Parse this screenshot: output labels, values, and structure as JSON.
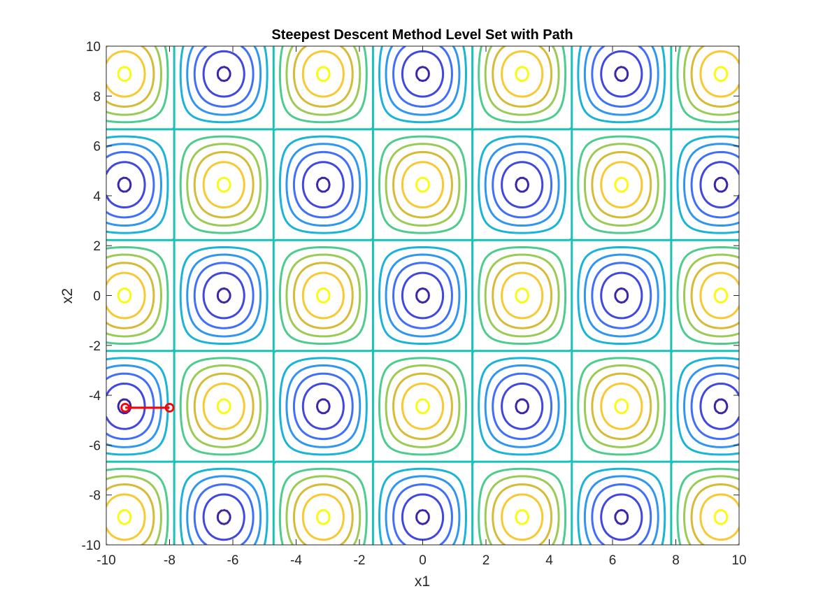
{
  "chart_data": {
    "type": "contour",
    "title": "Steepest Descent Method Level Set with Path",
    "xlabel": "x1",
    "ylabel": "x2",
    "xlim": [
      -10,
      10
    ],
    "ylim": [
      -10,
      10
    ],
    "x_ticks": [
      -10,
      -8,
      -6,
      -4,
      -2,
      0,
      2,
      4,
      6,
      8,
      10
    ],
    "y_ticks": [
      -10,
      -8,
      -6,
      -4,
      -2,
      0,
      2,
      4,
      6,
      8,
      10
    ],
    "x_tick_labels": [
      "-10",
      "-8",
      "-6",
      "-4",
      "-2",
      "0",
      "2",
      "4",
      "6",
      "8",
      "10"
    ],
    "y_tick_labels": [
      "-10",
      "-8",
      "-6",
      "-4",
      "-2",
      "0",
      "2",
      "4",
      "6",
      "8",
      "10"
    ],
    "grid": false,
    "box": true,
    "contour": {
      "x_period": 3.1416,
      "y_period": 4.4429,
      "x_center": 0,
      "y_center": 0,
      "levels": [
        -0.98,
        -0.8,
        -0.6,
        -0.4,
        -0.2,
        0,
        0.2,
        0.4,
        0.6,
        0.8,
        0.98
      ],
      "colormap": [
        "#3e26a8",
        "#4148e0",
        "#3f6ffb",
        "#2f96f2",
        "#1ab4d6",
        "#19c1b8",
        "#4dcc8d",
        "#9bcb54",
        "#d7ba35",
        "#f9c932",
        "#f9fb15"
      ]
    },
    "series": [
      {
        "type": "path",
        "color": "#ff0000",
        "marker": "circle",
        "x": [
          -8.0,
          -9.4
        ],
        "y": [
          -4.5,
          -4.5
        ]
      }
    ]
  }
}
